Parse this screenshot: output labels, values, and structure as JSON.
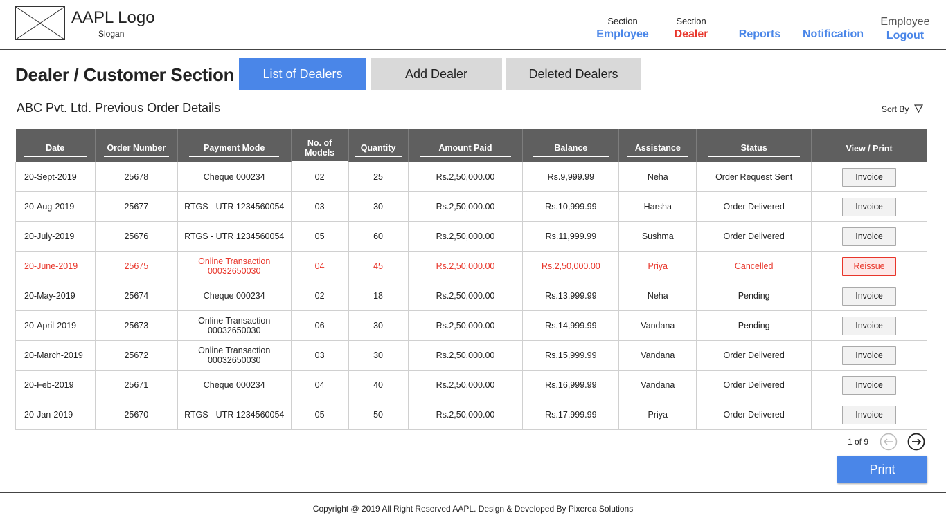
{
  "header": {
    "logo_text": "AAPL Logo",
    "slogan": "Slogan",
    "nav": {
      "employee": {
        "small": "Section",
        "label": "Employee"
      },
      "dealer": {
        "small": "Section",
        "label": "Dealer"
      },
      "reports": {
        "label": "Reports"
      },
      "notification": {
        "label": "Notification"
      },
      "logout": {
        "small": "Employee",
        "label": "Logout"
      }
    }
  },
  "main": {
    "section_title": "Dealer / Customer Section",
    "tabs": {
      "list": "List of Dealers",
      "add": "Add Dealer",
      "deleted": "Deleted Dealers"
    },
    "sub_title": "ABC Pvt. Ltd. Previous Order Details",
    "sort_label": "Sort By"
  },
  "table": {
    "headers": [
      "Date",
      "Order Number",
      "Payment Mode",
      "No. of Models",
      "Quantity",
      "Amount Paid",
      "Balance",
      "Assistance",
      "Status",
      "View / Print"
    ],
    "rows": [
      {
        "date": "20-Sept-2019",
        "order": "25678",
        "payment": "Cheque 000234",
        "payment2": "",
        "models": "02",
        "qty": "25",
        "paid": "Rs.2,50,000.00",
        "balance": "Rs.9,999.99",
        "assist": "Neha",
        "status": "Order Request Sent",
        "action": "Invoice"
      },
      {
        "date": "20-Aug-2019",
        "order": "25677",
        "payment": "RTGS - UTR 1234560054",
        "payment2": "",
        "models": "03",
        "qty": "30",
        "paid": "Rs.2,50,000.00",
        "balance": "Rs.10,999.99",
        "assist": "Harsha",
        "status": "Order Delivered",
        "action": "Invoice"
      },
      {
        "date": "20-July-2019",
        "order": "25676",
        "payment": "RTGS - UTR 1234560054",
        "payment2": "",
        "models": "05",
        "qty": "60",
        "paid": "Rs.2,50,000.00",
        "balance": "Rs.11,999.99",
        "assist": "Sushma",
        "status": "Order Delivered",
        "action": "Invoice"
      },
      {
        "date": "20-June-2019",
        "order": "25675",
        "payment": "Online Transaction",
        "payment2": "00032650030",
        "models": "04",
        "qty": "45",
        "paid": "Rs.2,50,000.00",
        "balance": "Rs.2,50,000.00",
        "assist": "Priya",
        "status": "Cancelled",
        "action": "Reissue"
      },
      {
        "date": "20-May-2019",
        "order": "25674",
        "payment": "Cheque 000234",
        "payment2": "",
        "models": "02",
        "qty": "18",
        "paid": "Rs.2,50,000.00",
        "balance": "Rs.13,999.99",
        "assist": "Neha",
        "status": "Pending",
        "action": "Invoice"
      },
      {
        "date": "20-April-2019",
        "order": "25673",
        "payment": "Online Transaction",
        "payment2": "00032650030",
        "models": "06",
        "qty": "30",
        "paid": "Rs.2,50,000.00",
        "balance": "Rs.14,999.99",
        "assist": "Vandana",
        "status": "Pending",
        "action": "Invoice"
      },
      {
        "date": "20-March-2019",
        "order": "25672",
        "payment": "Online Transaction",
        "payment2": "00032650030",
        "models": "03",
        "qty": "30",
        "paid": "Rs.2,50,000.00",
        "balance": "Rs.15,999.99",
        "assist": "Vandana",
        "status": "Order Delivered",
        "action": "Invoice"
      },
      {
        "date": "20-Feb-2019",
        "order": "25671",
        "payment": "Cheque 000234",
        "payment2": "",
        "models": "04",
        "qty": "40",
        "paid": "Rs.2,50,000.00",
        "balance": "Rs.16,999.99",
        "assist": "Vandana",
        "status": "Order Delivered",
        "action": "Invoice"
      },
      {
        "date": "20-Jan-2019",
        "order": "25670",
        "payment": "RTGS - UTR 1234560054",
        "payment2": "",
        "models": "05",
        "qty": "50",
        "paid": "Rs.2,50,000.00",
        "balance": "Rs.17,999.99",
        "assist": "Priya",
        "status": "Order Delivered",
        "action": "Invoice"
      }
    ]
  },
  "pagination": {
    "info": "1 of 9",
    "print_label": "Print"
  },
  "footer": {
    "copyright": "Copyright @ 2019 All Right Reserved AAPL. Design & Developed By Pixerea Solutions"
  },
  "colors": {
    "accent": "#4a86e8",
    "alert": "#e8352a",
    "header_bg": "#5f5f5f"
  }
}
